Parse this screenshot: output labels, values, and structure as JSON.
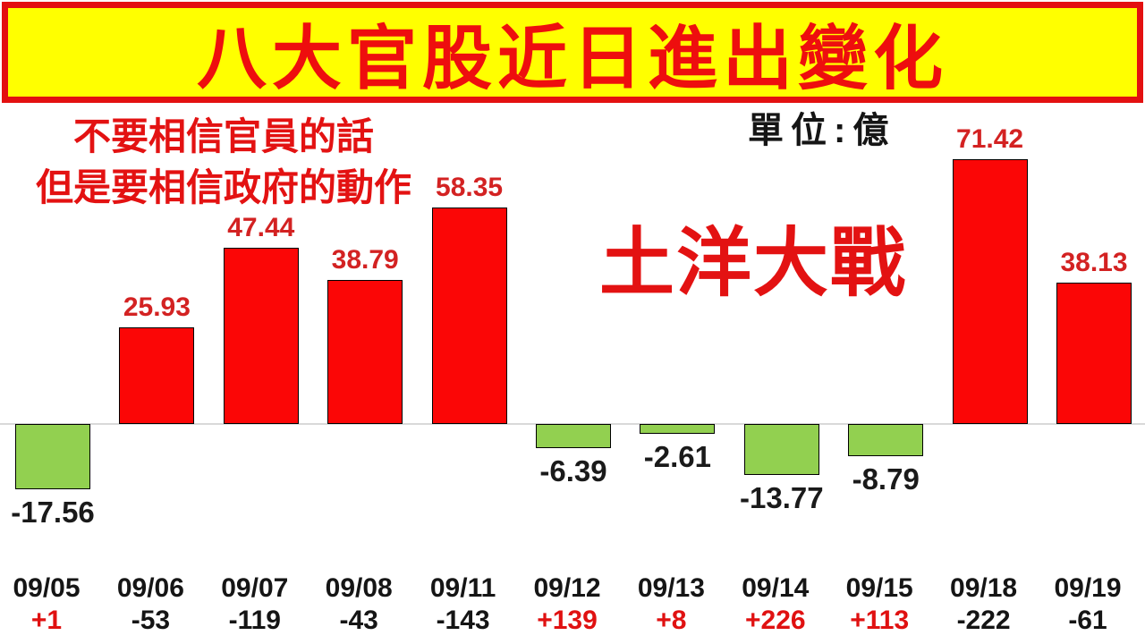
{
  "title": {
    "text": "八大官股近日進出變化"
  },
  "annotations": {
    "subtitle_line1": "不要相信官員的話",
    "subtitle_line2": "但是要相信政府的動作",
    "unit_label": "單位:億",
    "slogan": "土洋大戰"
  },
  "colors": {
    "banner_bg": "#ffff00",
    "banner_border": "#e31010",
    "title_red": "#ee0e0e",
    "text_red": "#e31212",
    "value_label_red": "#d32222",
    "value_label_black": "#1a1a1a",
    "change_red": "#e01111",
    "change_black": "#151515",
    "bar_positive": "#fb0606",
    "bar_negative": "#92d050",
    "bar_border": "#000000",
    "axis": "#d9d9d9"
  },
  "chart_data": {
    "type": "bar",
    "title": "八大官股近日進出變化",
    "unit": "億",
    "categories": [
      "09/05",
      "09/06",
      "09/07",
      "09/08",
      "09/11",
      "09/12",
      "09/13",
      "09/14",
      "09/15",
      "09/18",
      "09/19"
    ],
    "values": [
      -17.56,
      25.93,
      47.44,
      38.79,
      58.35,
      -6.39,
      -2.61,
      -13.77,
      -8.79,
      71.42,
      38.13
    ],
    "changes": [
      "+1",
      "-53",
      "-119",
      "-43",
      "-143",
      "+139",
      "+8",
      "+226",
      "+113",
      "-222",
      "-61"
    ],
    "baseline": 0,
    "ylim": [
      -25,
      80
    ],
    "grid": false,
    "legend": false,
    "positive_color": "#fb0606",
    "negative_color": "#92d050",
    "value_labels": "shown, red above positive bars, black below negative bars",
    "xlabel": "",
    "ylabel": ""
  }
}
